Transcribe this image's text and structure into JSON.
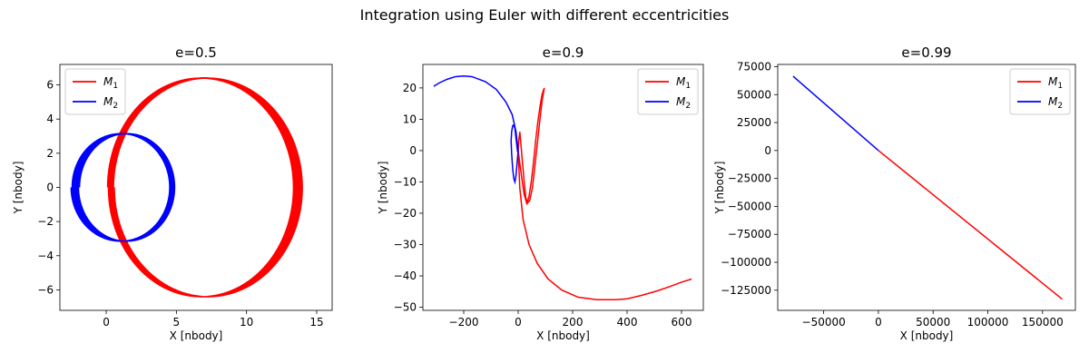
{
  "figure": {
    "suptitle": "Integration using Euler with different eccentricities"
  },
  "chart_data": [
    {
      "type": "line",
      "title": "e=0.5",
      "xlabel": "X [nbody]",
      "ylabel": "Y [nbody]",
      "xlim": [
        -3.3,
        16.1
      ],
      "ylim": [
        -7.2,
        7.2
      ],
      "xticks": [
        0,
        5,
        10,
        15
      ],
      "yticks": [
        -6,
        -4,
        -2,
        0,
        2,
        4,
        6
      ],
      "legend": "top-left",
      "grid": false,
      "series": [
        {
          "name": "M",
          "sub": "1",
          "color": "#ff0000",
          "kind": "precessing_orbit",
          "cx": 6.7,
          "cy": 0,
          "rx": 6.6,
          "ry": 6.4,
          "turns": 8,
          "drift_x": 0.6
        },
        {
          "name": "M",
          "sub": "2",
          "color": "#0000ff",
          "kind": "precessing_orbit",
          "cx": 1.5,
          "cy": 0,
          "rx": 3.4,
          "ry": 3.15,
          "turns": 8,
          "drift_x": -0.5
        }
      ]
    },
    {
      "type": "line",
      "title": "e=0.9",
      "xlabel": "X [nbody]",
      "ylabel": "Y [nbody]",
      "xlim": [
        -350,
        680
      ],
      "ylim": [
        -51,
        27.5
      ],
      "xticks": [
        -200,
        0,
        200,
        400,
        600
      ],
      "yticks": [
        -50,
        -40,
        -30,
        -20,
        -10,
        0,
        10,
        20
      ],
      "legend": "top-right",
      "grid": false,
      "series": [
        {
          "name": "M",
          "sub": "1",
          "color": "#ff0000",
          "kind": "points",
          "x": [
            0,
            12,
            22,
            32,
            42,
            52,
            60,
            70,
            80,
            88,
            94,
            96,
            94,
            88,
            80,
            72,
            64,
            56,
            48,
            40,
            34,
            28,
            22,
            16,
            10,
            6,
            2,
            0,
            6,
            18,
            40,
            70,
            110,
            160,
            220,
            290,
            360,
            400,
            450,
            510,
            560,
            600,
            637
          ],
          "y": [
            0,
            -8,
            -14,
            -17,
            -16,
            -12,
            -6,
            2,
            10,
            16,
            19,
            20,
            19.5,
            18,
            14,
            9,
            3,
            -4,
            -10,
            -14.5,
            -16.5,
            -15,
            -10,
            -4,
            2,
            6,
            3,
            0,
            -12,
            -22,
            -30,
            -36,
            -41,
            -44.5,
            -46.8,
            -47.6,
            -47.6,
            -47.3,
            -46.3,
            -44.8,
            -43.3,
            -42.0,
            -41.0
          ]
        },
        {
          "name": "M",
          "sub": "2",
          "color": "#0000ff",
          "kind": "points",
          "x": [
            0,
            -4,
            -8,
            -12,
            -16,
            -20,
            -24,
            -26,
            -24,
            -20,
            -16,
            -12,
            -8,
            -4,
            -2,
            0,
            -8,
            -22,
            -45,
            -80,
            -120,
            -170,
            -200,
            -230,
            -260,
            -290,
            -310
          ],
          "y": [
            0,
            -4,
            -8,
            -10,
            -9,
            -6,
            -1,
            3,
            6,
            8,
            8.2,
            7,
            4,
            1,
            -0.5,
            0,
            6,
            11.5,
            15.5,
            19.5,
            22,
            23.6,
            23.8,
            23.6,
            22.8,
            21.6,
            20.5
          ]
        }
      ]
    },
    {
      "type": "line",
      "title": "e=0.99",
      "xlabel": "X [nbody]",
      "ylabel": "Y [nbody]",
      "xlim": [
        -92000,
        180000
      ],
      "ylim": [
        -143000,
        77000
      ],
      "xticks": [
        -50000,
        0,
        50000,
        100000,
        150000
      ],
      "yticks": [
        -125000,
        -100000,
        -75000,
        -50000,
        -25000,
        0,
        25000,
        50000,
        75000
      ],
      "legend": "top-right",
      "grid": false,
      "series": [
        {
          "name": "M",
          "sub": "1",
          "color": "#ff0000",
          "kind": "points",
          "x": [
            0,
            168000
          ],
          "y": [
            0,
            -133000
          ]
        },
        {
          "name": "M",
          "sub": "2",
          "color": "#0000ff",
          "kind": "points",
          "x": [
            0,
            -78000
          ],
          "y": [
            0,
            66500
          ]
        }
      ]
    }
  ]
}
